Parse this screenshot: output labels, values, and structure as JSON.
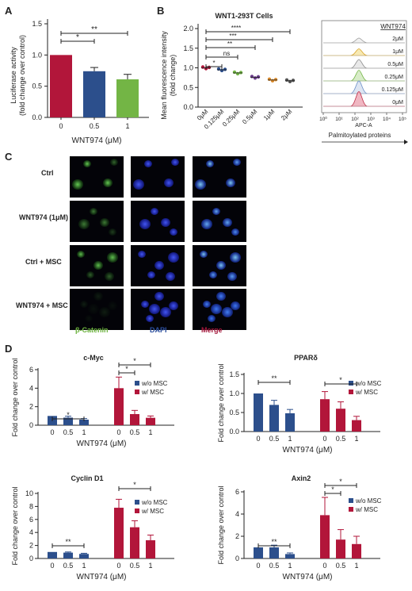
{
  "colors": {
    "red": "#b2163a",
    "blue": "#2c4f8c",
    "green": "#73b545",
    "purple": "#6a3d8a",
    "orange": "#d98a2b",
    "grey": "#555555"
  },
  "panel_labels": {
    "a": "A",
    "b": "B",
    "c": "C",
    "d": "D"
  },
  "panelA": {
    "ylabel_line1": "Luciferase activity",
    "ylabel_line2": "(fold change over control)",
    "xlabel": "WNT974 (μM)",
    "yticks": [
      "0.0",
      "0.5",
      "1.0",
      "1.5"
    ],
    "categories": [
      "0",
      "0.5",
      "1"
    ],
    "sig": [
      "*",
      "**"
    ]
  },
  "panelB": {
    "title": "WNT1-293T Cells",
    "ylabel_line1": "Mean fluorescence intensity",
    "ylabel_line2": "(fold change)",
    "yticks": [
      "0.0",
      "0.5",
      "1.0",
      "1.5",
      "2.0"
    ],
    "categories": [
      "0μM",
      "0.125μM",
      "0.25μM",
      "0.5μM",
      "1μM",
      "2μM"
    ],
    "sig": [
      "*",
      "ns",
      "**",
      "***",
      "****"
    ]
  },
  "histogram": {
    "header": "WNT974",
    "rows": [
      "2μM",
      "1μM",
      "0.5μM",
      "0.25μM",
      "0.125μM",
      "0μM"
    ],
    "xticks": [
      "10⁰",
      "10¹",
      "10²",
      "10³",
      "10⁴",
      "10⁵"
    ],
    "xlabel": "APC-A",
    "caption": "Palmitoylated proteins"
  },
  "panelC": {
    "rows": [
      "Ctrl",
      "WNT974 (1μM)",
      "Ctrl + MSC",
      "WNT974 + MSC"
    ],
    "channels": [
      "β-Catenin",
      "DAPI",
      "Merge"
    ]
  },
  "panelD_common": {
    "xlabel": "WNT974 (μM)",
    "ylabel": "Fold change over control",
    "legend": [
      "w/o MSC",
      "w/ MSC"
    ],
    "categories": [
      "0",
      "0.5",
      "1",
      "0",
      "0.5",
      "1"
    ]
  },
  "chart_data": [
    {
      "type": "bar",
      "panel": "A",
      "categories": [
        "0",
        "0.5",
        "1"
      ],
      "values": [
        1.0,
        0.74,
        0.61
      ],
      "errors": [
        0,
        0.06,
        0.08
      ],
      "ylim": [
        0,
        1.5
      ],
      "ylabel": "Luciferase activity (fold change over control)",
      "xlabel": "WNT974 (μM)"
    },
    {
      "type": "scatter",
      "panel": "B",
      "title": "WNT1-293T Cells",
      "categories": [
        "0μM",
        "0.125μM",
        "0.25μM",
        "0.5μM",
        "1μM",
        "2μM"
      ],
      "values": [
        1.0,
        0.95,
        0.87,
        0.76,
        0.69,
        0.67
      ],
      "ylim": [
        0,
        2.0
      ],
      "ylabel": "Mean fluorescence intensity (fold change)"
    },
    {
      "type": "bar",
      "panel": "D",
      "title": "c-Myc",
      "ylim": [
        0,
        6
      ],
      "yticks": [
        "0",
        "2",
        "4",
        "6"
      ],
      "categories": [
        "0",
        "0.5",
        "1"
      ],
      "series": [
        {
          "name": "w/o MSC",
          "values": [
            1.0,
            0.82,
            0.6
          ],
          "errors": [
            0,
            0.15,
            0.12
          ]
        },
        {
          "name": "w/ MSC",
          "values": [
            4.0,
            1.2,
            0.8
          ],
          "errors": [
            1.2,
            0.4,
            0.2
          ]
        }
      ],
      "sig": [
        "*",
        "*",
        "*"
      ]
    },
    {
      "type": "bar",
      "panel": "D",
      "title": "PPARδ",
      "ylim": [
        0,
        1.5
      ],
      "yticks": [
        "0.0",
        "0.5",
        "1.0",
        "1.5"
      ],
      "categories": [
        "0",
        "0.5",
        "1"
      ],
      "series": [
        {
          "name": "w/o MSC",
          "values": [
            1.0,
            0.7,
            0.48
          ],
          "errors": [
            0,
            0.12,
            0.1
          ]
        },
        {
          "name": "w/ MSC",
          "values": [
            0.85,
            0.6,
            0.3
          ],
          "errors": [
            0.2,
            0.18,
            0.1
          ]
        }
      ],
      "sig": [
        "**",
        "*"
      ]
    },
    {
      "type": "bar",
      "panel": "D",
      "title": "Cyclin D1",
      "ylim": [
        0,
        10
      ],
      "yticks": [
        "0",
        "2",
        "4",
        "6",
        "8",
        "10"
      ],
      "categories": [
        "0",
        "0.5",
        "1"
      ],
      "series": [
        {
          "name": "w/o MSC",
          "values": [
            1.0,
            0.9,
            0.7
          ],
          "errors": [
            0,
            0.1,
            0.1
          ]
        },
        {
          "name": "w/ MSC",
          "values": [
            7.8,
            4.8,
            2.8
          ],
          "errors": [
            1.3,
            1.0,
            0.8
          ]
        }
      ],
      "sig": [
        "**",
        "*"
      ]
    },
    {
      "type": "bar",
      "panel": "D",
      "title": "Axin2",
      "ylim": [
        0,
        6
      ],
      "yticks": [
        "0",
        "2",
        "4",
        "6"
      ],
      "categories": [
        "0",
        "0.5",
        "1"
      ],
      "series": [
        {
          "name": "w/o MSC",
          "values": [
            1.0,
            1.0,
            0.4
          ],
          "errors": [
            0,
            0.2,
            0.1
          ]
        },
        {
          "name": "w/ MSC",
          "values": [
            3.9,
            1.7,
            1.3
          ],
          "errors": [
            1.6,
            0.9,
            0.7
          ]
        }
      ],
      "sig": [
        "**",
        "*",
        "*"
      ]
    }
  ]
}
